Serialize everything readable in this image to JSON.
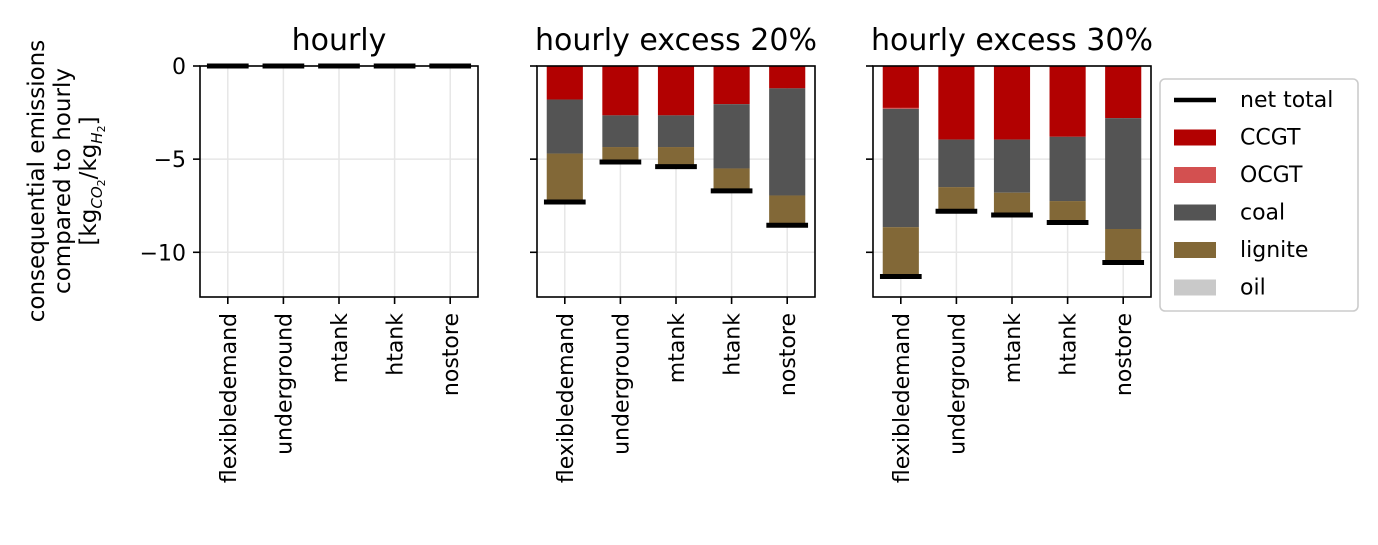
{
  "chart_data": {
    "type": "bar",
    "stacked": true,
    "ylabel_lines": [
      "consequential emissions",
      "compared to hourly"
    ],
    "ylabel_unit": {
      "open": "[kg",
      "sub1": "CO",
      "sub1b": "2",
      "slash": "/kg",
      "sub2": "H",
      "sub2b": "2",
      "close": "]"
    },
    "ylim": [
      -12.4,
      0
    ],
    "yticks": [
      0,
      -5,
      -10
    ],
    "ytick_labels": [
      "0",
      "−5",
      "−10"
    ],
    "grid": true,
    "categories": [
      "flexibledemand",
      "underground",
      "mtank",
      "htank",
      "nostore"
    ],
    "legend": {
      "placement": "right",
      "entries": [
        {
          "name": "net total",
          "color": "#000000",
          "kind": "line"
        },
        {
          "name": "CCGT",
          "color": "#b20101",
          "kind": "patch"
        },
        {
          "name": "OCGT",
          "color": "#d35050",
          "kind": "patch"
        },
        {
          "name": "coal",
          "color": "#545454",
          "kind": "patch"
        },
        {
          "name": "lignite",
          "color": "#826837",
          "kind": "patch"
        },
        {
          "name": "oil",
          "color": "#c9c9c9",
          "kind": "patch"
        }
      ]
    },
    "panels": [
      {
        "title": "hourly",
        "series": [
          {
            "name": "CCGT",
            "values": [
              0,
              0,
              0,
              0,
              0
            ]
          },
          {
            "name": "OCGT",
            "values": [
              0,
              0,
              0,
              0,
              0
            ]
          },
          {
            "name": "coal",
            "values": [
              0,
              0,
              0,
              0,
              0
            ]
          },
          {
            "name": "lignite",
            "values": [
              0,
              0,
              0,
              0,
              0
            ]
          },
          {
            "name": "oil",
            "values": [
              0,
              0,
              0,
              0,
              0
            ]
          }
        ],
        "net_total": [
          0,
          0,
          0,
          0,
          0
        ]
      },
      {
        "title": "hourly excess 20%",
        "series": [
          {
            "name": "CCGT",
            "values": [
              -1.8,
              -2.65,
              -2.65,
              -2.05,
              -1.2
            ]
          },
          {
            "name": "OCGT",
            "values": [
              0,
              0,
              0,
              0,
              0
            ]
          },
          {
            "name": "coal",
            "values": [
              -2.9,
              -1.7,
              -1.7,
              -3.45,
              -5.75
            ]
          },
          {
            "name": "lignite",
            "values": [
              -2.6,
              -0.8,
              -1.05,
              -1.2,
              -1.6
            ]
          },
          {
            "name": "oil",
            "values": [
              0,
              0,
              0,
              0,
              0
            ]
          }
        ],
        "net_total": [
          -7.3,
          -5.15,
          -5.4,
          -6.7,
          -8.55
        ]
      },
      {
        "title": "hourly excess 30%",
        "series": [
          {
            "name": "CCGT",
            "values": [
              -2.25,
              -3.95,
              -3.95,
              -3.8,
              -2.8
            ]
          },
          {
            "name": "OCGT",
            "values": [
              -0.05,
              0,
              0,
              0,
              0
            ]
          },
          {
            "name": "coal",
            "values": [
              -6.35,
              -2.55,
              -2.85,
              -3.45,
              -5.95
            ]
          },
          {
            "name": "lignite",
            "values": [
              -2.65,
              -1.3,
              -1.2,
              -1.15,
              -1.8
            ]
          },
          {
            "name": "oil",
            "values": [
              0,
              0,
              0,
              0,
              0
            ]
          }
        ],
        "net_total": [
          -11.3,
          -7.8,
          -8.0,
          -8.4,
          -10.55
        ]
      }
    ]
  }
}
